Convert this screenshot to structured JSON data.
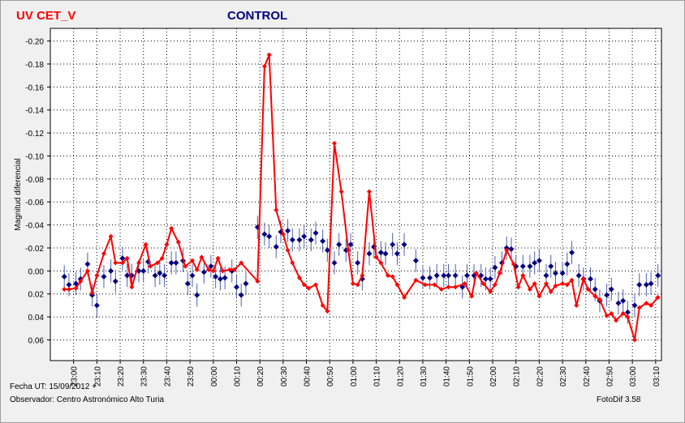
{
  "chart_data": {
    "type": "line",
    "ylabel": "Magnitud diferencial",
    "xlim": [
      1370,
      1632.5
    ],
    "ylim": [
      0.078,
      -0.211
    ],
    "xticks": [
      {
        "value": 1380,
        "label": "23:00"
      },
      {
        "value": 1390,
        "label": "23:10"
      },
      {
        "value": 1400,
        "label": "23:20"
      },
      {
        "value": 1410,
        "label": "23:30"
      },
      {
        "value": 1420,
        "label": "23:40"
      },
      {
        "value": 1430,
        "label": "23:50"
      },
      {
        "value": 1440,
        "label": "00:00"
      },
      {
        "value": 1450,
        "label": "00:10"
      },
      {
        "value": 1460,
        "label": "00:20"
      },
      {
        "value": 1470,
        "label": "00:30"
      },
      {
        "value": 1480,
        "label": "00:40"
      },
      {
        "value": 1490,
        "label": "00:50"
      },
      {
        "value": 1500,
        "label": "01:00"
      },
      {
        "value": 1510,
        "label": "01:10"
      },
      {
        "value": 1520,
        "label": "01:20"
      },
      {
        "value": 1530,
        "label": "01:30"
      },
      {
        "value": 1540,
        "label": "01:40"
      },
      {
        "value": 1550,
        "label": "01:50"
      },
      {
        "value": 1560,
        "label": "02:00"
      },
      {
        "value": 1570,
        "label": "02:10"
      },
      {
        "value": 1580,
        "label": "02:20"
      },
      {
        "value": 1590,
        "label": "02:30"
      },
      {
        "value": 1600,
        "label": "02:40"
      },
      {
        "value": 1610,
        "label": "02:50"
      },
      {
        "value": 1620,
        "label": "03:00"
      },
      {
        "value": 1630,
        "label": "03:10"
      }
    ],
    "yticks": [
      {
        "value": -0.2,
        "label": "-0.20"
      },
      {
        "value": -0.18,
        "label": "-0.18"
      },
      {
        "value": -0.16,
        "label": "-0.16"
      },
      {
        "value": -0.14,
        "label": "-0.14"
      },
      {
        "value": -0.12,
        "label": "-0.12"
      },
      {
        "value": -0.1,
        "label": "-0.10"
      },
      {
        "value": -0.08,
        "label": "-0.08"
      },
      {
        "value": -0.06,
        "label": "-0.06"
      },
      {
        "value": -0.04,
        "label": "-0.04"
      },
      {
        "value": -0.02,
        "label": "-0.02"
      },
      {
        "value": 0,
        "label": "0.00"
      },
      {
        "value": 0.02,
        "label": "0.02"
      },
      {
        "value": 0.04,
        "label": "0.04"
      },
      {
        "value": 0.06,
        "label": "0.06"
      }
    ],
    "grid": true,
    "series": [
      {
        "name": "UV CET_V",
        "color": "#ff0000",
        "x": [
          1376,
          1378,
          1381,
          1383,
          1386,
          1388,
          1390,
          1393,
          1396,
          1398,
          1401,
          1403,
          1405,
          1408,
          1411,
          1413,
          1416,
          1418,
          1420,
          1422,
          1425,
          1428,
          1431,
          1433,
          1435,
          1438,
          1440,
          1442,
          1444,
          1447,
          1449,
          1452,
          1459,
          1462,
          1464,
          1467,
          1470,
          1472,
          1474,
          1477,
          1479,
          1481,
          1484,
          1487,
          1489,
          1492,
          1495,
          1498,
          1500,
          1502,
          1504,
          1507,
          1510,
          1512,
          1515,
          1517,
          1519,
          1522,
          1527,
          1531,
          1535,
          1538,
          1541,
          1544,
          1548,
          1551,
          1553,
          1556,
          1559,
          1561,
          1563,
          1566,
          1569,
          1571,
          1573,
          1576,
          1578,
          1580,
          1583,
          1585,
          1587,
          1590,
          1592,
          1594,
          1596,
          1599,
          1601,
          1604,
          1606,
          1609,
          1611,
          1613,
          1616,
          1618,
          1621,
          1623,
          1626,
          1628,
          1631
        ],
        "values": [
          0.016,
          0.016,
          0.015,
          0.009,
          0,
          0.019,
          0.004,
          -0.015,
          -0.03,
          -0.007,
          -0.007,
          -0.011,
          0.014,
          -0.007,
          -0.023,
          -0.004,
          -0.007,
          -0.011,
          -0.023,
          -0.037,
          -0.025,
          -0.004,
          -0.009,
          -0.001,
          -0.012,
          -0.001,
          0,
          -0.011,
          0,
          -0.001,
          -0.001,
          -0.007,
          0.009,
          -0.178,
          -0.188,
          -0.053,
          -0.032,
          -0.018,
          -0.007,
          0.006,
          0.012,
          0.015,
          0.012,
          0.03,
          0.035,
          -0.111,
          -0.069,
          -0.018,
          0.011,
          0.012,
          0.004,
          -0.069,
          -0.012,
          -0.007,
          0.004,
          0.005,
          0.012,
          0.023,
          0.008,
          0.012,
          0.012,
          0.016,
          0.014,
          0.014,
          0.011,
          0.022,
          0.002,
          0.011,
          0.018,
          0.012,
          0.002,
          -0.018,
          -0.006,
          0.014,
          0.004,
          0.016,
          0.011,
          0.022,
          0.011,
          0.018,
          0.013,
          0.011,
          0.012,
          0.008,
          0.03,
          0.007,
          0.016,
          0.022,
          0.025,
          0.039,
          0.037,
          0.043,
          0.037,
          0.04,
          0.06,
          0.032,
          0.028,
          0.03,
          0.023
        ]
      },
      {
        "name": "CONTROL",
        "color": "#000080",
        "error": 0.01,
        "x": [
          1376,
          1378,
          1381,
          1383,
          1386,
          1388,
          1390,
          1393,
          1396,
          1398,
          1401,
          1403,
          1405,
          1408,
          1410,
          1412,
          1415,
          1417,
          1419,
          1422,
          1424,
          1427,
          1429,
          1431,
          1433,
          1436,
          1439,
          1441,
          1443,
          1445,
          1448,
          1450,
          1452,
          1454,
          1459,
          1462,
          1464,
          1467,
          1469,
          1472,
          1474,
          1477,
          1479,
          1482,
          1484,
          1487,
          1489,
          1492,
          1494,
          1497,
          1499,
          1502,
          1504,
          1507,
          1509,
          1512,
          1514,
          1517,
          1519,
          1522,
          1527,
          1530,
          1533,
          1536,
          1539,
          1541,
          1544,
          1547,
          1549,
          1552,
          1555,
          1557,
          1559,
          1561,
          1564,
          1566,
          1568,
          1570,
          1573,
          1576,
          1578,
          1580,
          1583,
          1585,
          1587,
          1590,
          1592,
          1594,
          1597,
          1599,
          1602,
          1604,
          1606,
          1609,
          1611,
          1614,
          1616,
          1618,
          1621,
          1623,
          1626,
          1628,
          1631
        ],
        "values": [
          0.005,
          0.012,
          0.011,
          0.007,
          -0.006,
          0.021,
          0.03,
          0.005,
          0,
          0.009,
          -0.011,
          0.004,
          0.004,
          0,
          0,
          -0.008,
          0.004,
          0.002,
          0.004,
          -0.007,
          -0.007,
          -0.009,
          0.011,
          0.004,
          0.021,
          0.001,
          -0.004,
          0.005,
          0.007,
          0.006,
          0,
          0.014,
          0.021,
          0.011,
          -0.038,
          -0.032,
          -0.03,
          -0.021,
          -0.034,
          -0.035,
          -0.027,
          -0.027,
          -0.03,
          -0.027,
          -0.033,
          -0.026,
          -0.018,
          -0.007,
          -0.023,
          -0.018,
          -0.023,
          -0.007,
          0.007,
          -0.015,
          -0.021,
          -0.016,
          -0.015,
          -0.023,
          -0.015,
          -0.023,
          -0.009,
          0.006,
          0.006,
          0.004,
          0.004,
          0.004,
          0.004,
          0.014,
          0.004,
          0.004,
          0.004,
          0.007,
          0.007,
          -0.003,
          -0.007,
          -0.02,
          -0.019,
          -0.004,
          -0.004,
          -0.004,
          -0.007,
          -0.009,
          0.004,
          -0.004,
          0.002,
          0.002,
          -0.006,
          -0.016,
          0.004,
          0.007,
          0.007,
          0.016,
          0.026,
          0.021,
          0.016,
          0.028,
          0.026,
          0.036,
          0.03,
          0.012,
          0.012,
          0.011,
          0.004
        ]
      }
    ],
    "footer": {
      "date": "Fecha UT: 15/09/2012 +",
      "observer": "Observador: Centro Astronómico Alto Turia",
      "software": "FotoDif 3.58"
    }
  }
}
